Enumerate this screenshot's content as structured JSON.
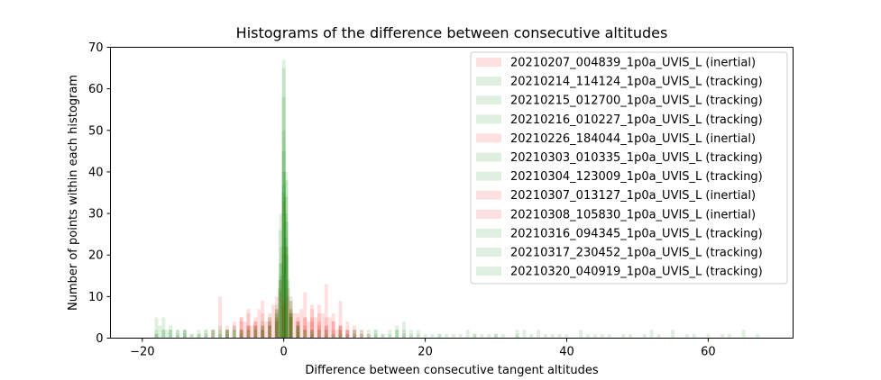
{
  "chart_data": {
    "type": "bar",
    "subtype": "overlaid-histogram",
    "title": "Histograms of the difference between consecutive altitudes",
    "xlabel": "Difference between consecutive tangent altitudes",
    "ylabel": "Number of points within each histogram",
    "xlim": [
      -24.5,
      72
    ],
    "ylim": [
      0,
      70
    ],
    "xticks": [
      -20,
      0,
      20,
      40,
      60
    ],
    "yticks": [
      0,
      10,
      20,
      30,
      40,
      50,
      60,
      70
    ],
    "bar_alpha": 0.12,
    "legend_position": "top-right",
    "colors": {
      "inertial": "#ff0000",
      "tracking": "#008000"
    },
    "series": [
      {
        "name": "20210207_004839_1p0a_UVIS_L (inertial)",
        "mode": "inertial",
        "bins": [
          [
            -7,
            3
          ],
          [
            -6,
            5
          ],
          [
            -5.5,
            4
          ],
          [
            -5,
            6
          ],
          [
            -4.5,
            3
          ],
          [
            -4,
            5
          ],
          [
            -3.5,
            7
          ],
          [
            -3,
            6
          ],
          [
            -2.5,
            4
          ],
          [
            -2,
            5
          ],
          [
            -1.5,
            8
          ],
          [
            -1,
            10
          ],
          [
            -0.5,
            14
          ],
          [
            0,
            33
          ],
          [
            0.3,
            22
          ],
          [
            0.6,
            12
          ],
          [
            1,
            7
          ],
          [
            1.5,
            6
          ],
          [
            2,
            5
          ],
          [
            2.5,
            7
          ],
          [
            3,
            5
          ],
          [
            3.5,
            4
          ],
          [
            4,
            8
          ],
          [
            4.5,
            5
          ],
          [
            5,
            4
          ],
          [
            5.5,
            6
          ],
          [
            6,
            3
          ],
          [
            6.5,
            5
          ],
          [
            7,
            4
          ],
          [
            7.5,
            2
          ],
          [
            8,
            3
          ],
          [
            9,
            2
          ]
        ]
      },
      {
        "name": "20210214_114124_1p0a_UVIS_L (tracking)",
        "mode": "tracking",
        "bins": [
          [
            -18,
            5
          ],
          [
            -17,
            5
          ],
          [
            -16,
            3
          ],
          [
            -15,
            2
          ],
          [
            -14,
            2
          ],
          [
            -12,
            1
          ],
          [
            -10,
            2
          ],
          [
            -9,
            3
          ],
          [
            -8,
            2
          ],
          [
            -7,
            3
          ],
          [
            -6,
            2
          ],
          [
            -5,
            3
          ],
          [
            -4,
            3
          ],
          [
            -3,
            4
          ],
          [
            -2,
            5
          ],
          [
            -1,
            8
          ],
          [
            -0.5,
            26
          ],
          [
            0,
            58
          ],
          [
            0.3,
            34
          ],
          [
            0.6,
            14
          ],
          [
            1,
            6
          ],
          [
            2,
            3
          ],
          [
            3,
            2
          ],
          [
            4,
            2
          ],
          [
            6,
            2
          ],
          [
            8,
            2
          ],
          [
            10,
            1
          ],
          [
            13,
            2
          ],
          [
            15,
            1
          ],
          [
            17,
            2
          ],
          [
            18,
            1
          ]
        ]
      },
      {
        "name": "20210215_012700_1p0a_UVIS_L (tracking)",
        "mode": "tracking",
        "bins": [
          [
            -17.5,
            3
          ],
          [
            -16.5,
            2
          ],
          [
            -14,
            2
          ],
          [
            -11,
            2
          ],
          [
            -8,
            2
          ],
          [
            -6,
            2
          ],
          [
            -4,
            3
          ],
          [
            -2,
            4
          ],
          [
            -1,
            7
          ],
          [
            -0.4,
            30
          ],
          [
            0,
            65
          ],
          [
            0.4,
            38
          ],
          [
            1,
            10
          ],
          [
            2,
            4
          ],
          [
            4,
            2
          ],
          [
            6,
            2
          ],
          [
            9,
            1
          ],
          [
            12,
            2
          ],
          [
            16,
            3
          ],
          [
            17,
            4
          ],
          [
            19,
            2
          ],
          [
            22,
            1
          ],
          [
            25,
            1
          ]
        ]
      },
      {
        "name": "20210216_010227_1p0a_UVIS_L (tracking)",
        "mode": "tracking",
        "bins": [
          [
            -18,
            2
          ],
          [
            -15,
            2
          ],
          [
            -13,
            1
          ],
          [
            -10,
            2
          ],
          [
            -8,
            1
          ],
          [
            -6,
            2
          ],
          [
            -3,
            3
          ],
          [
            -1,
            6
          ],
          [
            -0.3,
            22
          ],
          [
            0,
            67
          ],
          [
            0.3,
            40
          ],
          [
            1,
            9
          ],
          [
            2,
            3
          ],
          [
            5,
            2
          ],
          [
            8,
            1
          ],
          [
            11,
            2
          ],
          [
            14,
            1
          ],
          [
            16,
            2
          ],
          [
            27,
            1
          ],
          [
            29,
            1
          ],
          [
            33,
            1
          ],
          [
            35,
            1
          ]
        ]
      },
      {
        "name": "20210226_184044_1p0a_UVIS_L (inertial)",
        "mode": "inertial",
        "bins": [
          [
            -9,
            10
          ],
          [
            -8,
            3
          ],
          [
            -7,
            4
          ],
          [
            -6,
            5
          ],
          [
            -5,
            7
          ],
          [
            -4,
            4
          ],
          [
            -3,
            9
          ],
          [
            -2,
            6
          ],
          [
            -1,
            7
          ],
          [
            -0.5,
            11
          ],
          [
            0,
            20
          ],
          [
            0.5,
            10
          ],
          [
            1,
            9
          ],
          [
            2,
            6
          ],
          [
            3,
            11
          ],
          [
            4,
            5
          ],
          [
            5,
            8
          ],
          [
            6,
            13
          ],
          [
            7,
            6
          ],
          [
            8,
            9
          ],
          [
            9,
            4
          ],
          [
            10,
            3
          ],
          [
            11,
            2
          ]
        ]
      },
      {
        "name": "20210303_010335_1p0a_UVIS_L (tracking)",
        "mode": "tracking",
        "bins": [
          [
            -16,
            2
          ],
          [
            -12,
            2
          ],
          [
            -9,
            1
          ],
          [
            -7,
            2
          ],
          [
            -5,
            2
          ],
          [
            -3,
            3
          ],
          [
            -1,
            6
          ],
          [
            -0.5,
            18
          ],
          [
            0,
            50
          ],
          [
            0.4,
            28
          ],
          [
            1,
            7
          ],
          [
            3,
            2
          ],
          [
            6,
            1
          ],
          [
            10,
            2
          ],
          [
            14,
            1
          ],
          [
            18,
            2
          ],
          [
            22,
            1
          ],
          [
            26,
            2
          ],
          [
            30,
            1
          ],
          [
            34,
            2
          ],
          [
            38,
            1
          ],
          [
            42,
            2
          ],
          [
            46,
            1
          ]
        ]
      },
      {
        "name": "20210304_123009_1p0a_UVIS_L (tracking)",
        "mode": "tracking",
        "bins": [
          [
            -17,
            2
          ],
          [
            -14,
            1
          ],
          [
            -11,
            2
          ],
          [
            -8,
            2
          ],
          [
            -4,
            2
          ],
          [
            -2,
            3
          ],
          [
            -0.6,
            12
          ],
          [
            0,
            45
          ],
          [
            0.3,
            30
          ],
          [
            1,
            6
          ],
          [
            2,
            3
          ],
          [
            5,
            2
          ],
          [
            9,
            1
          ],
          [
            13,
            2
          ],
          [
            20,
            1
          ],
          [
            28,
            1
          ],
          [
            36,
            2
          ],
          [
            44,
            1
          ],
          [
            52,
            2
          ],
          [
            55,
            2
          ],
          [
            60,
            1
          ]
        ]
      },
      {
        "name": "20210307_013127_1p0a_UVIS_L (inertial)",
        "mode": "inertial",
        "bins": [
          [
            -10,
            2
          ],
          [
            -8,
            2
          ],
          [
            -6,
            4
          ],
          [
            -5,
            3
          ],
          [
            -4,
            4
          ],
          [
            -3,
            3
          ],
          [
            -2,
            4
          ],
          [
            -1,
            5
          ],
          [
            0,
            9
          ],
          [
            1,
            6
          ],
          [
            2,
            4
          ],
          [
            3,
            5
          ],
          [
            4,
            7
          ],
          [
            5,
            6
          ],
          [
            6,
            5
          ],
          [
            7,
            4
          ],
          [
            8,
            3
          ],
          [
            9,
            2
          ],
          [
            10,
            2
          ],
          [
            11,
            1
          ],
          [
            12,
            1
          ]
        ]
      },
      {
        "name": "20210308_105830_1p0a_UVIS_L (inertial)",
        "mode": "inertial",
        "bins": [
          [
            -6,
            2
          ],
          [
            -5,
            3
          ],
          [
            -4,
            3
          ],
          [
            -3,
            2
          ],
          [
            -2,
            3
          ],
          [
            -1,
            4
          ],
          [
            0,
            8
          ],
          [
            1,
            5
          ],
          [
            2,
            4
          ],
          [
            3,
            3
          ],
          [
            4,
            4
          ],
          [
            5,
            3
          ],
          [
            6,
            3
          ],
          [
            7,
            2
          ],
          [
            8,
            3
          ],
          [
            9,
            2
          ],
          [
            10,
            1
          ]
        ]
      },
      {
        "name": "20210316_094345_1p0a_UVIS_L (tracking)",
        "mode": "tracking",
        "bins": [
          [
            -18,
            1
          ],
          [
            -16,
            2
          ],
          [
            -13,
            1
          ],
          [
            -9,
            2
          ],
          [
            -6,
            1
          ],
          [
            -3,
            2
          ],
          [
            -1,
            4
          ],
          [
            -0.4,
            15
          ],
          [
            0,
            40
          ],
          [
            0.4,
            22
          ],
          [
            1,
            5
          ],
          [
            2,
            2
          ],
          [
            4,
            1
          ],
          [
            8,
            2
          ],
          [
            12,
            1
          ],
          [
            16,
            2
          ],
          [
            19,
            1
          ],
          [
            24,
            1
          ],
          [
            31,
            1
          ],
          [
            40,
            1
          ],
          [
            48,
            1
          ],
          [
            62,
            1
          ],
          [
            65,
            2
          ]
        ]
      },
      {
        "name": "20210317_230452_1p0a_UVIS_L (tracking)",
        "mode": "tracking",
        "bins": [
          [
            -17,
            2
          ],
          [
            -15,
            1
          ],
          [
            -12,
            1
          ],
          [
            -10,
            2
          ],
          [
            -7,
            2
          ],
          [
            -4,
            2
          ],
          [
            -2,
            3
          ],
          [
            -0.5,
            14
          ],
          [
            0,
            37
          ],
          [
            0.5,
            20
          ],
          [
            1,
            5
          ],
          [
            3,
            2
          ],
          [
            7,
            1
          ],
          [
            11,
            1
          ],
          [
            15,
            2
          ],
          [
            21,
            1
          ],
          [
            27,
            1
          ],
          [
            33,
            2
          ],
          [
            39,
            1
          ],
          [
            45,
            1
          ],
          [
            51,
            1
          ],
          [
            57,
            1
          ],
          [
            63,
            1
          ],
          [
            67,
            1
          ]
        ]
      },
      {
        "name": "20210320_040919_1p0a_UVIS_L (tracking)",
        "mode": "tracking",
        "bins": [
          [
            -18,
            1
          ],
          [
            -14,
            2
          ],
          [
            -11,
            1
          ],
          [
            -8,
            2
          ],
          [
            -5,
            2
          ],
          [
            -3,
            2
          ],
          [
            -1,
            5
          ],
          [
            -0.3,
            18
          ],
          [
            0,
            35
          ],
          [
            0.3,
            24
          ],
          [
            1,
            6
          ],
          [
            2,
            3
          ],
          [
            4,
            2
          ],
          [
            7,
            1
          ],
          [
            10,
            2
          ],
          [
            13,
            1
          ],
          [
            17,
            1
          ],
          [
            23,
            1
          ],
          [
            30,
            1
          ],
          [
            37,
            1
          ],
          [
            43,
            1
          ],
          [
            49,
            1
          ],
          [
            53,
            1
          ],
          [
            58,
            1
          ]
        ]
      }
    ]
  }
}
